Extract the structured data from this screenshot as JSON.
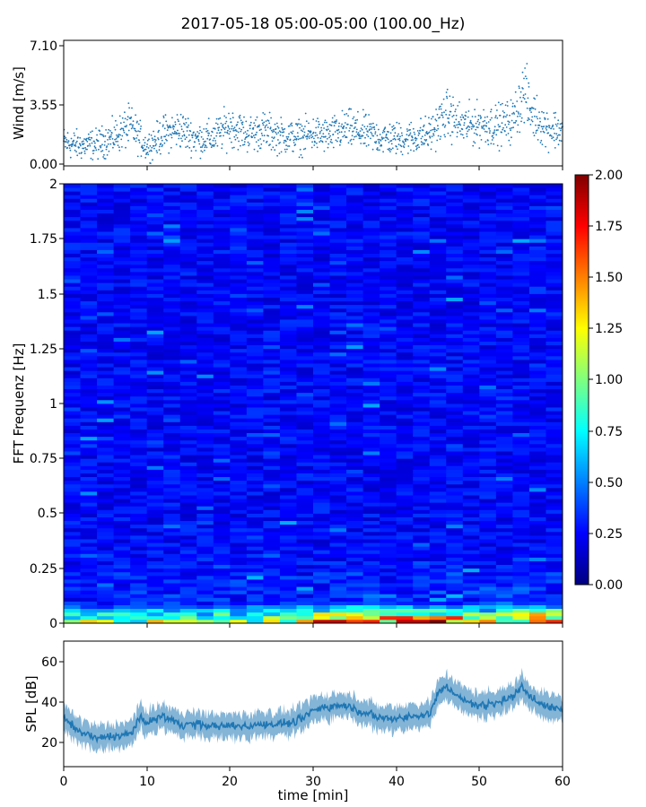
{
  "chart_data": [
    {
      "type": "scatter",
      "title": "2017-05-18 05:00-05:00 (100.00_Hz)",
      "ylabel": "Wind [m/s]",
      "xlim": [
        0,
        60
      ],
      "ylim": [
        0.0,
        7.1
      ],
      "yticks": [
        "0.00",
        "3.55",
        "7.10"
      ],
      "series": [
        {
          "color": "#1f77b4",
          "x": [
            0,
            2,
            4,
            6,
            8,
            10,
            12,
            14,
            16,
            18,
            20,
            22,
            24,
            26,
            28,
            30,
            32,
            34,
            36,
            38,
            40,
            42,
            44,
            46,
            48,
            50,
            52,
            54,
            55.5,
            56,
            58,
            60
          ],
          "y": [
            1.3,
            1.1,
            1.2,
            1.6,
            2.3,
            1.0,
            1.8,
            2.1,
            1.5,
            1.6,
            2.3,
            1.8,
            2.0,
            1.7,
            1.6,
            1.8,
            1.7,
            2.1,
            1.9,
            1.6,
            1.5,
            1.6,
            1.8,
            3.0,
            2.3,
            2.4,
            2.3,
            2.6,
            4.5,
            3.2,
            2.2,
            2.0
          ]
        }
      ]
    },
    {
      "type": "heatmap",
      "ylabel": "FFT Frequenz [Hz]",
      "xlim": [
        0,
        60
      ],
      "ylim": [
        0,
        2
      ],
      "yticks": [
        "0",
        "0.25",
        "0.5",
        "0.75",
        "1",
        "1.25",
        "1.5",
        "1.75",
        "2"
      ],
      "colorbar": {
        "min": 0.0,
        "max": 2.0,
        "ticks": [
          "0.00",
          "0.25",
          "0.50",
          "0.75",
          "1.00",
          "1.25",
          "1.50",
          "1.75",
          "2.00"
        ],
        "colormap": "jet"
      }
    },
    {
      "type": "line",
      "ylabel": "SPL [dB]",
      "xlabel": "time [min]",
      "xlim": [
        0,
        60
      ],
      "ylim": [
        8,
        70
      ],
      "xticks": [
        "0",
        "10",
        "20",
        "30",
        "40",
        "50",
        "60"
      ],
      "yticks": [
        "20",
        "40",
        "60"
      ],
      "series": [
        {
          "color": "#1f77b4",
          "x": [
            0,
            2,
            4,
            6,
            8,
            9,
            10,
            12,
            14,
            16,
            18,
            20,
            22,
            24,
            26,
            28,
            30,
            32,
            34,
            36,
            38,
            40,
            42,
            44,
            45,
            46,
            48,
            50,
            52,
            54,
            55,
            56,
            58,
            60
          ],
          "y": [
            32,
            25,
            22,
            23,
            24,
            32,
            30,
            33,
            29,
            29,
            28,
            28,
            28,
            29,
            29,
            30,
            36,
            38,
            38,
            35,
            32,
            32,
            33,
            34,
            44,
            48,
            41,
            38,
            40,
            42,
            48,
            43,
            38,
            36
          ]
        }
      ]
    }
  ]
}
